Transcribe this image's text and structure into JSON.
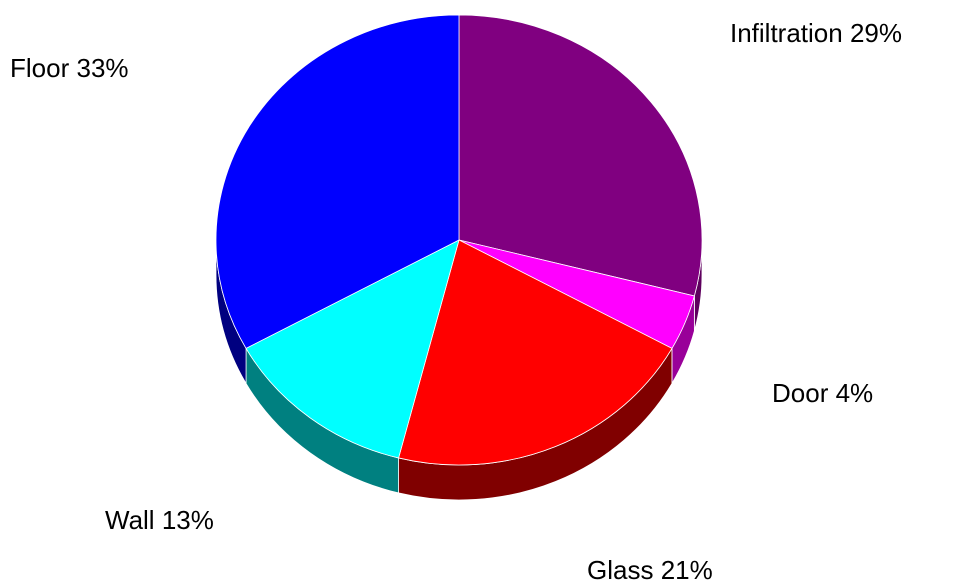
{
  "chart_data": {
    "type": "pie",
    "categories": [
      "Infiltration",
      "Door",
      "Glass",
      "Wall",
      "Floor"
    ],
    "values": [
      29,
      4,
      21,
      13,
      33
    ],
    "value_labels": [
      "29%",
      "4%",
      "21%",
      "13%",
      "33%"
    ],
    "colors": [
      "#800080",
      "#ff00ff",
      "#ff0000",
      "#00ffff",
      "#0000ff"
    ],
    "side_colors": [
      "#5e005e",
      "#990099",
      "#800000",
      "#008080",
      "#000080"
    ]
  }
}
